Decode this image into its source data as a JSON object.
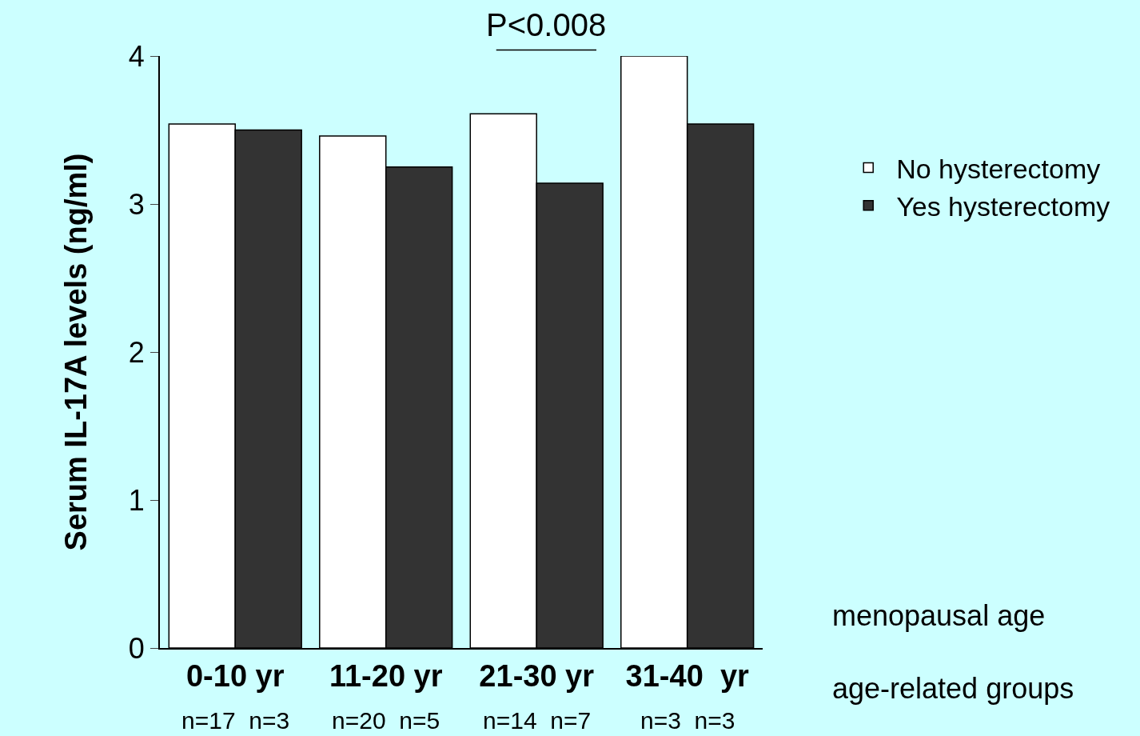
{
  "chart_data": {
    "type": "bar",
    "ylabel": "Serum IL-17A levels (ng/ml)",
    "categories": [
      "0-10 yr",
      "11-20 yr",
      "21-30 yr",
      "31-40  yr"
    ],
    "series": [
      {
        "name": "No hysterectomy",
        "color": "#ffffff",
        "values": [
          3.54,
          3.46,
          3.61,
          4.0
        ]
      },
      {
        "name": "Yes hysterectomy",
        "color": "#333333",
        "values": [
          3.5,
          3.25,
          3.14,
          3.54
        ]
      }
    ],
    "ylim": [
      0,
      4
    ],
    "yticks": [
      0,
      1,
      2,
      3,
      4
    ],
    "grid": false,
    "legend": "right",
    "annotations": [
      "P<0.008",
      "n=17  n=3",
      "n=20  n=5",
      "n=14  n=7",
      "n=3  n=3",
      "menopausal age",
      "age-related groups"
    ]
  }
}
